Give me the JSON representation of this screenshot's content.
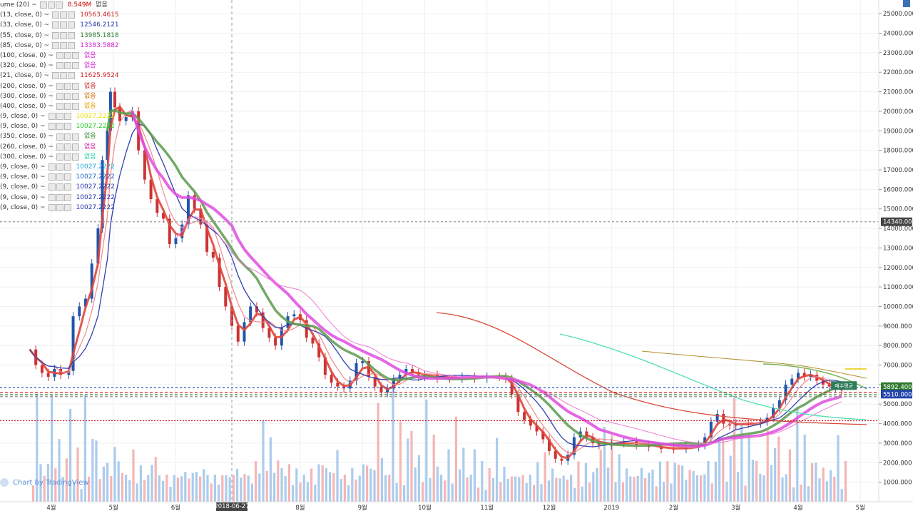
{
  "legend": [
    {
      "name": "ume (20)",
      "value": "8.549M",
      "value2": "없음",
      "color": "#cc0000"
    },
    {
      "name": "(13, close, 0)",
      "value": "10563.4615",
      "color": "#cc2222"
    },
    {
      "name": "(33, close, 0)",
      "value": "12546.2121",
      "color": "#2233aa"
    },
    {
      "name": "(55, close, 0)",
      "value": "13985.1818",
      "color": "#2d7a2d"
    },
    {
      "name": "(85, close, 0)",
      "value": "13383.5882",
      "color": "#d020d0"
    },
    {
      "name": "(100, close, 0)",
      "value": "없음",
      "color": "#d020d0"
    },
    {
      "name": "(320, close, 0)",
      "value": "없음",
      "color": "#d020d0"
    },
    {
      "name": "(21, close, 0)",
      "value": "11625.9524",
      "color": "#cc2222"
    },
    {
      "name": "(200, close, 0)",
      "value": "없음",
      "color": "#cc2222"
    },
    {
      "name": "(300, close, 0)",
      "value": "없음",
      "color": "#d36b00"
    },
    {
      "name": "(400, close, 0)",
      "value": "없음",
      "color": "#e0a000"
    },
    {
      "name": "(9, close, 0)",
      "value": "10027.2222",
      "color": "#e8e000"
    },
    {
      "name": "(9, close, 0)",
      "value": "10027.2222",
      "color": "#22cc22"
    },
    {
      "name": "(350, close, 0)",
      "value": "없음",
      "color": "#2d8a2d"
    },
    {
      "name": "(260, close, 0)",
      "value": "없음",
      "color": "#d020a0"
    },
    {
      "name": "(300, close, 0)",
      "value": "없음",
      "color": "#22ccaa"
    },
    {
      "name": "(9, close, 0)",
      "value": "10027.2222",
      "color": "#22aadd"
    },
    {
      "name": "(9, close, 0)",
      "value": "10027.2222",
      "color": "#2266cc"
    },
    {
      "name": "(9, close, 0)",
      "value": "10027.2222",
      "color": "#2233aa"
    },
    {
      "name": "(9, close, 0)",
      "value": "10027.2222",
      "color": "#2233aa"
    },
    {
      "name": "(9, close, 0)",
      "value": "10027.2222",
      "color": "#2233aa"
    }
  ],
  "watermark": "Chart by TradingView",
  "chart_data": {
    "type": "line",
    "ylim": [
      0,
      25700
    ],
    "price_ticks": [
      1000,
      2000,
      3000,
      4000,
      5000,
      6000,
      7000,
      8000,
      9000,
      10000,
      11000,
      12000,
      13000,
      14000,
      15000,
      16000,
      17000,
      18000,
      19000,
      20000,
      21000,
      22000,
      23000,
      24000,
      25000
    ],
    "price_tick_labels": [
      "1000.000",
      "2000.000",
      "3000.000",
      "4000.000",
      "5000.000",
      "6000.000",
      "7000.000",
      "8000.000",
      "9000.000",
      "10000.000",
      "11000.000",
      "12000.000",
      "13000.000",
      "14000.000",
      "15000.000",
      "16000.000",
      "17000.000",
      "18000.000",
      "19000.000",
      "20000.000",
      "21000.000",
      "22000.000",
      "23000.000",
      "24000.000",
      "25000.000"
    ],
    "month_ticks": [
      {
        "label": "4월",
        "pos": 0.0
      },
      {
        "label": "5월",
        "pos": 1.0
      },
      {
        "label": "6월",
        "pos": 2.0
      },
      {
        "label": "8월",
        "pos": 4.0
      },
      {
        "label": "9월",
        "pos": 5.0
      },
      {
        "label": "10월",
        "pos": 6.0
      },
      {
        "label": "11월",
        "pos": 7.0
      },
      {
        "label": "12월",
        "pos": 8.0
      },
      {
        "label": "2019",
        "pos": 9.0
      },
      {
        "label": "2월",
        "pos": 10.0
      },
      {
        "label": "3월",
        "pos": 11.0
      },
      {
        "label": "4월",
        "pos": 12.0
      },
      {
        "label": "5월",
        "pos": 13.0
      }
    ],
    "cursor": {
      "label": "2018-06-27",
      "pos": 2.9,
      "price": 14340
    },
    "price_labels": [
      {
        "text": "14340.000",
        "price": 14340,
        "bg": "#444444",
        "fg": "#ffffff"
      },
      {
        "text": "5892.400",
        "price": 5892,
        "bg": "#2d7a2d",
        "fg": "#ffffff"
      },
      {
        "text": "5510.000",
        "price": 5510,
        "bg": "#2244aa",
        "fg": "#ffffff"
      }
    ],
    "hlines": [
      {
        "price": 5850,
        "color": "#2255cc",
        "dash": "3,3"
      },
      {
        "price": 5610,
        "color": "#cc2222",
        "dash": "4,3"
      },
      {
        "price": 5480,
        "color": "#2d7a2d",
        "dash": "4,3"
      },
      {
        "price": 5380,
        "color": "#888888",
        "dash": "4,3"
      },
      {
        "price": 4150,
        "color": "#cc2222",
        "dash": "2,2"
      },
      {
        "price": 14340,
        "color": "#999999",
        "dash": "3,3"
      }
    ],
    "annotation": {
      "text": "매수평균",
      "pos": 12.85,
      "price": 5950
    },
    "price_path": [
      [
        -0.35,
        7800
      ],
      [
        -0.25,
        7000
      ],
      [
        -0.15,
        6600
      ],
      [
        -0.05,
        6400
      ],
      [
        0.05,
        6800
      ],
      [
        0.15,
        6500
      ],
      [
        0.28,
        6700
      ],
      [
        0.35,
        9500
      ],
      [
        0.45,
        10000
      ],
      [
        0.55,
        10400
      ],
      [
        0.65,
        12200
      ],
      [
        0.75,
        14000
      ],
      [
        0.82,
        17500
      ],
      [
        0.9,
        19000
      ],
      [
        0.95,
        21000
      ],
      [
        1.02,
        20200
      ],
      [
        1.1,
        19500
      ],
      [
        1.2,
        19700
      ],
      [
        1.3,
        20000
      ],
      [
        1.4,
        18000
      ],
      [
        1.5,
        16500
      ],
      [
        1.6,
        15500
      ],
      [
        1.7,
        14800
      ],
      [
        1.8,
        14500
      ],
      [
        1.9,
        13200
      ],
      [
        2.0,
        13500
      ],
      [
        2.1,
        14200
      ],
      [
        2.2,
        15700
      ],
      [
        2.3,
        15000
      ],
      [
        2.4,
        14200
      ],
      [
        2.5,
        12800
      ],
      [
        2.6,
        12500
      ],
      [
        2.7,
        11000
      ],
      [
        2.8,
        10000
      ],
      [
        2.9,
        9000
      ],
      [
        3.0,
        8200
      ],
      [
        3.1,
        9200
      ],
      [
        3.2,
        10000
      ],
      [
        3.3,
        9700
      ],
      [
        3.4,
        8900
      ],
      [
        3.5,
        8400
      ],
      [
        3.6,
        8000
      ],
      [
        3.7,
        8900
      ],
      [
        3.8,
        9500
      ],
      [
        3.9,
        9600
      ],
      [
        4.0,
        9300
      ],
      [
        4.1,
        8400
      ],
      [
        4.2,
        8100
      ],
      [
        4.3,
        7400
      ],
      [
        4.4,
        6500
      ],
      [
        4.5,
        6100
      ],
      [
        4.6,
        5900
      ],
      [
        4.7,
        5800
      ],
      [
        4.8,
        6200
      ],
      [
        4.9,
        7100
      ],
      [
        5.0,
        7200
      ],
      [
        5.1,
        6400
      ],
      [
        5.2,
        5900
      ],
      [
        5.3,
        5600
      ],
      [
        5.4,
        5800
      ],
      [
        5.5,
        6300
      ],
      [
        5.6,
        6500
      ],
      [
        5.7,
        6800
      ],
      [
        5.8,
        6600
      ],
      [
        5.9,
        6400
      ],
      [
        6.0,
        6500
      ],
      [
        6.2,
        6300
      ],
      [
        6.4,
        6300
      ],
      [
        6.6,
        6400
      ],
      [
        6.8,
        6300
      ],
      [
        7.0,
        6400
      ],
      [
        7.2,
        6400
      ],
      [
        7.3,
        6300
      ],
      [
        7.4,
        5500
      ],
      [
        7.5,
        4600
      ],
      [
        7.6,
        4200
      ],
      [
        7.7,
        3900
      ],
      [
        7.8,
        3600
      ],
      [
        7.9,
        3200
      ],
      [
        8.0,
        2600
      ],
      [
        8.1,
        2200
      ],
      [
        8.2,
        2100
      ],
      [
        8.3,
        2400
      ],
      [
        8.4,
        3300
      ],
      [
        8.5,
        3600
      ],
      [
        8.6,
        3300
      ],
      [
        8.7,
        3000
      ],
      [
        8.8,
        2900
      ],
      [
        9.0,
        3000
      ],
      [
        9.2,
        3100
      ],
      [
        9.4,
        2900
      ],
      [
        9.6,
        2800
      ],
      [
        9.8,
        2700
      ],
      [
        10.0,
        2700
      ],
      [
        10.2,
        2800
      ],
      [
        10.4,
        2900
      ],
      [
        10.5,
        3300
      ],
      [
        10.6,
        4100
      ],
      [
        10.7,
        4500
      ],
      [
        10.8,
        4000
      ],
      [
        10.9,
        3900
      ],
      [
        11.0,
        4000
      ],
      [
        11.2,
        4000
      ],
      [
        11.4,
        4100
      ],
      [
        11.5,
        4300
      ],
      [
        11.6,
        4800
      ],
      [
        11.7,
        5200
      ],
      [
        11.8,
        6000
      ],
      [
        11.9,
        6300
      ],
      [
        12.0,
        6600
      ],
      [
        12.1,
        6400
      ],
      [
        12.2,
        6500
      ],
      [
        12.3,
        6200
      ],
      [
        12.4,
        6000
      ],
      [
        12.5,
        5900
      ],
      [
        12.6,
        5800
      ],
      [
        12.7,
        5700
      ]
    ],
    "volume_heights": [
      0.3,
      0.8,
      0.5,
      0.2,
      0.4,
      0.9,
      0.3,
      0.6,
      0.2,
      0.5,
      0.7,
      0.3,
      0.4,
      0.2,
      0.8,
      0.3,
      0.5,
      0.6,
      0.2,
      0.3,
      0.4,
      0.2,
      0.7,
      0.3,
      0.5,
      0.2,
      0.3,
      0.4,
      0.2,
      0.3,
      0.2,
      0.25,
      0.3,
      0.5,
      0.2,
      0.3,
      0.2,
      0.25,
      0.2,
      0.3,
      0.2,
      0.3,
      0.2,
      0.25,
      0.3,
      0.2,
      0.4,
      0.2,
      0.3,
      0.2,
      0.25,
      0.2,
      0.3,
      0.2,
      0.25,
      0.3,
      0.2,
      0.3,
      0.2,
      0.25,
      0.3,
      0.5,
      0.6,
      0.4,
      0.5,
      0.3,
      0.35,
      0.3,
      0.25,
      0.3,
      0.2,
      0.25,
      0.3,
      0.2,
      0.3,
      0.25,
      0.2,
      0.3,
      0.35,
      0.3,
      0.25,
      0.3,
      0.4,
      0.3,
      0.2,
      0.3,
      0.25,
      0.3,
      0.2,
      0.4,
      0.3,
      0.3
    ]
  }
}
